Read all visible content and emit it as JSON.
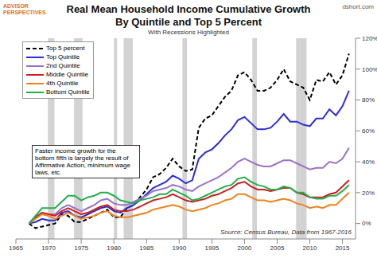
{
  "chart_data": {
    "type": "line",
    "logo": "ADVISOR PERSPECTIVES",
    "watermark": "dshort.com",
    "title": "Real Mean Household Income Cumulative Growth",
    "subtitle": "By Quintile and Top 5 Percent",
    "caption": "With Recessions Highlighted",
    "annotation": "Faster income growth for the bottom fifth is largely the result of Affirmative Action, minimum wage laws, etc.",
    "source": "Source: Census Bureau, Data from 1967-2016",
    "legend": "top-left",
    "grid": false,
    "xlim": [
      1965,
      2017
    ],
    "xticks": [
      1965,
      1970,
      1975,
      1980,
      1985,
      1990,
      1995,
      2000,
      2005,
      2010,
      2015
    ],
    "ylim": [
      -10,
      120
    ],
    "yticks": [
      {
        "value": 0,
        "label": "0%"
      },
      {
        "value": 20,
        "label": "20%"
      },
      {
        "value": 40,
        "label": "40%"
      },
      {
        "value": 60,
        "label": "60%"
      },
      {
        "value": 80,
        "label": "80%"
      },
      {
        "value": 100,
        "label": "100%"
      },
      {
        "value": 120,
        "label": "120%"
      }
    ],
    "recessions": [
      [
        1969.9,
        1970.9
      ],
      [
        1973.9,
        1975.2
      ],
      [
        1980.0,
        1980.5
      ],
      [
        1981.5,
        1982.9
      ],
      [
        1990.5,
        1991.2
      ],
      [
        2001.2,
        2001.9
      ],
      [
        2007.9,
        2009.5
      ]
    ],
    "x": [
      1967,
      1968,
      1969,
      1970,
      1971,
      1972,
      1973,
      1974,
      1975,
      1976,
      1977,
      1978,
      1979,
      1980,
      1981,
      1982,
      1983,
      1984,
      1985,
      1986,
      1987,
      1988,
      1989,
      1990,
      1991,
      1992,
      1993,
      1994,
      1995,
      1996,
      1997,
      1998,
      1999,
      2000,
      2001,
      2002,
      2003,
      2004,
      2005,
      2006,
      2007,
      2008,
      2009,
      2010,
      2011,
      2012,
      2013,
      2014,
      2015,
      2016
    ],
    "series": [
      {
        "name": "Top 5 percent",
        "color": "#000000",
        "line_style": "dashed",
        "values": [
          0,
          -3,
          -2,
          -1,
          0,
          6,
          5,
          1,
          1,
          3,
          5,
          7,
          9,
          4,
          4,
          10,
          12,
          17,
          22,
          30,
          32,
          36,
          42,
          37,
          34,
          35,
          62,
          68,
          70,
          76,
          82,
          86,
          96,
          98,
          93,
          86,
          86,
          88,
          93,
          100,
          92,
          90,
          88,
          80,
          93,
          92,
          98,
          90,
          96,
          110
        ]
      },
      {
        "name": "Top Quintile",
        "color": "#2b2bd9",
        "line_style": "solid",
        "values": [
          0,
          1,
          3,
          2,
          2,
          7,
          8,
          5,
          4,
          6,
          8,
          10,
          11,
          8,
          7,
          10,
          12,
          15,
          19,
          23,
          25,
          27,
          31,
          29,
          26,
          28,
          42,
          46,
          48,
          52,
          57,
          61,
          67,
          69,
          65,
          61,
          61,
          62,
          66,
          71,
          66,
          66,
          64,
          63,
          68,
          68,
          74,
          70,
          76,
          86
        ]
      },
      {
        "name": "2nd Quintile",
        "color": "#9b72c9",
        "line_style": "solid",
        "values": [
          0,
          4,
          7,
          6,
          6,
          10,
          12,
          10,
          8,
          10,
          12,
          15,
          16,
          13,
          12,
          12,
          14,
          16,
          18,
          21,
          22,
          23,
          25,
          24,
          22,
          21,
          24,
          26,
          28,
          30,
          33,
          36,
          40,
          42,
          40,
          38,
          37,
          37,
          39,
          41,
          41,
          39,
          37,
          35,
          36,
          36,
          40,
          39,
          42,
          49
        ]
      },
      {
        "name": "Middle Quintile",
        "color": "#cc2020",
        "line_style": "solid",
        "values": [
          0,
          4,
          7,
          6,
          5,
          8,
          10,
          8,
          6,
          7,
          9,
          11,
          12,
          9,
          8,
          8,
          9,
          11,
          13,
          15,
          16,
          17,
          19,
          17,
          15,
          14,
          15,
          16,
          18,
          19,
          21,
          23,
          26,
          27,
          24,
          22,
          22,
          21,
          22,
          23,
          23,
          20,
          19,
          17,
          17,
          17,
          19,
          20,
          24,
          28
        ]
      },
      {
        "name": "4th Quintile",
        "color": "#f0821e",
        "line_style": "solid",
        "values": [
          0,
          3,
          6,
          5,
          3,
          5,
          7,
          5,
          3,
          4,
          5,
          7,
          8,
          5,
          4,
          4,
          5,
          6,
          7,
          9,
          10,
          11,
          12,
          11,
          9,
          8,
          9,
          10,
          12,
          13,
          15,
          16,
          19,
          19,
          17,
          15,
          15,
          14,
          15,
          16,
          15,
          13,
          12,
          10,
          11,
          10,
          12,
          12,
          16,
          20
        ]
      },
      {
        "name": "Bottom Quintile",
        "color": "#22b04b",
        "line_style": "solid",
        "values": [
          0,
          5,
          10,
          10,
          10,
          14,
          18,
          18,
          15,
          17,
          18,
          20,
          20,
          18,
          15,
          14,
          13,
          15,
          16,
          17,
          19,
          19,
          22,
          20,
          18,
          15,
          16,
          18,
          20,
          22,
          24,
          25,
          29,
          30,
          27,
          25,
          24,
          22,
          22,
          24,
          23,
          20,
          20,
          17,
          16,
          16,
          18,
          18,
          21,
          25
        ]
      }
    ]
  }
}
